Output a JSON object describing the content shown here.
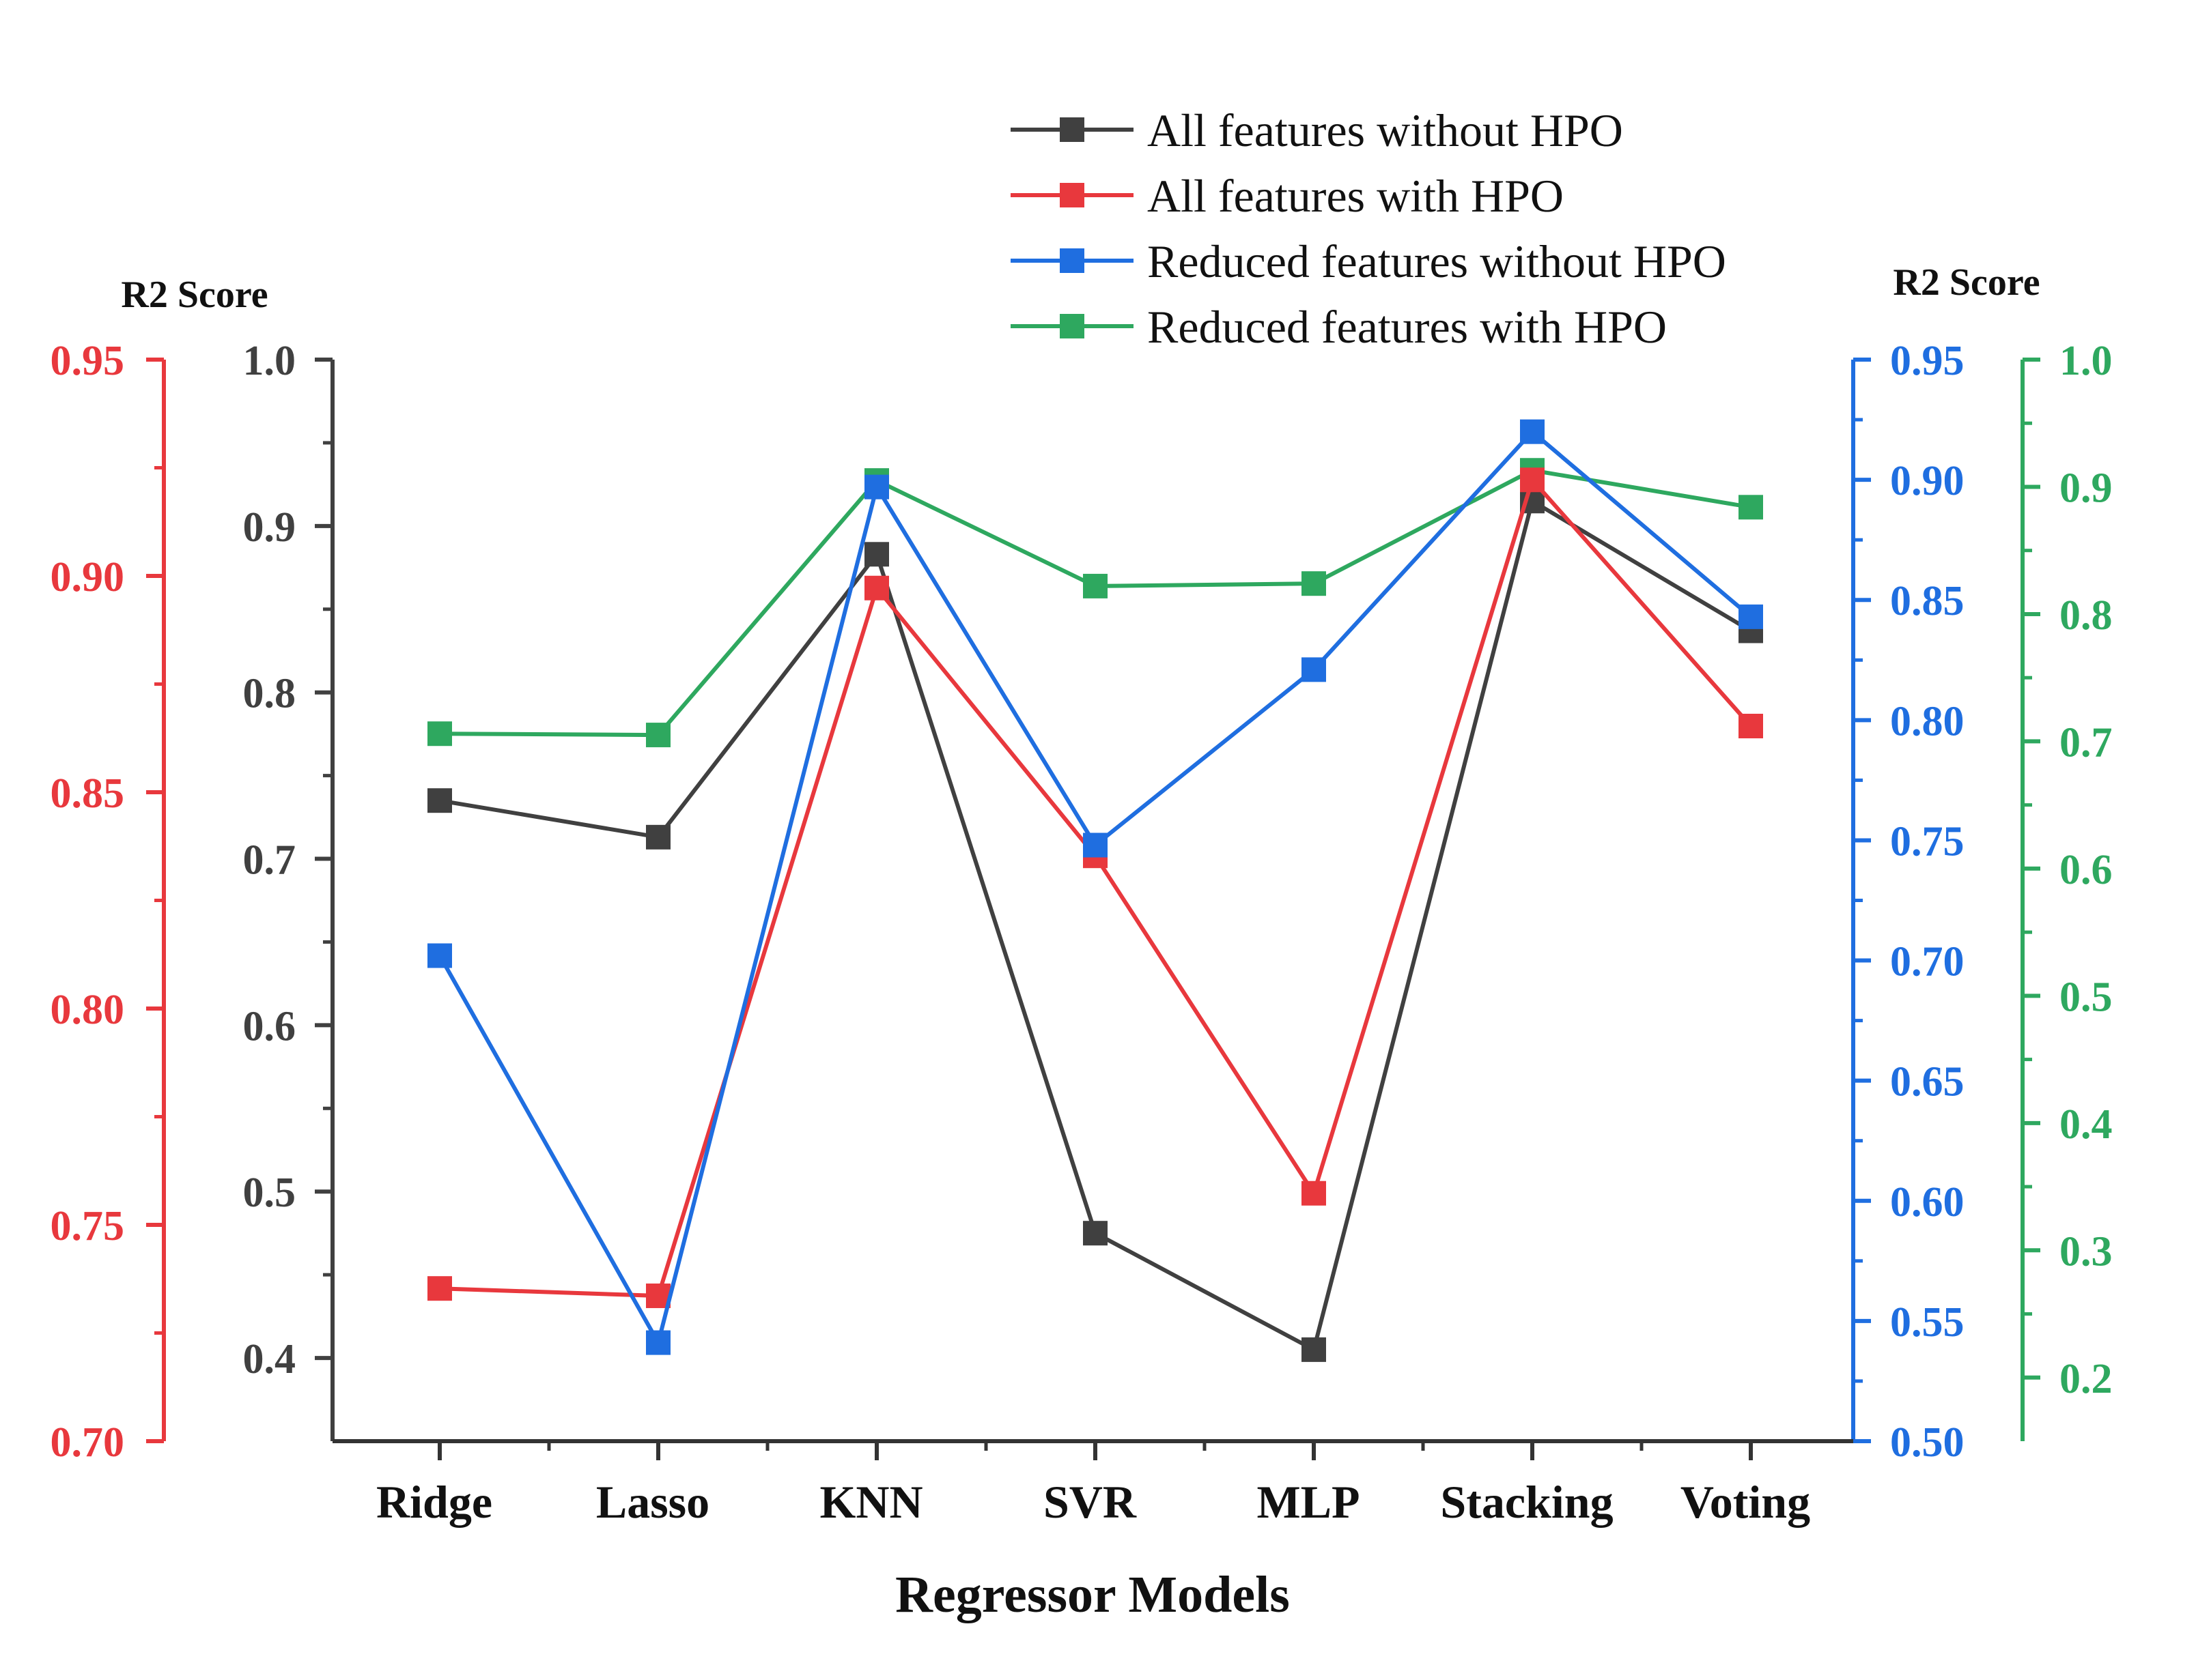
{
  "chart_data": {
    "type": "line",
    "xlabel": "Regressor Models",
    "categories": [
      "Ridge",
      "Lasso",
      "KNN",
      "SVR",
      "MLP",
      "Stacking",
      "Voting"
    ],
    "left_axis_title": "R2 Score",
    "right_axis_title": "R2 Score",
    "axes": {
      "red": {
        "color": "#e8383d",
        "ylim": [
          0.7,
          0.95
        ],
        "ticks": [
          "0.70",
          "0.75",
          "0.80",
          "0.85",
          "0.90",
          "0.95"
        ]
      },
      "black": {
        "color": "#404040",
        "ylim": [
          0.35,
          1.0
        ],
        "ticks": [
          "0.4",
          "0.5",
          "0.6",
          "0.7",
          "0.8",
          "0.9",
          "1.0"
        ]
      },
      "blue": {
        "color": "#1f6ee0",
        "ylim": [
          0.5,
          0.95
        ],
        "ticks": [
          "0.50",
          "0.55",
          "0.60",
          "0.65",
          "0.70",
          "0.75",
          "0.80",
          "0.85",
          "0.90",
          "0.95"
        ]
      },
      "green": {
        "color": "#2ea85f",
        "ylim": [
          0.15,
          1.0
        ],
        "ticks": [
          "0.2",
          "0.3",
          "0.4",
          "0.5",
          "0.6",
          "0.7",
          "0.8",
          "0.9",
          "1.0"
        ]
      }
    },
    "series": [
      {
        "name": "All features without HPO",
        "color": "#404040",
        "axis": "black",
        "values": [
          0.735,
          0.713,
          0.883,
          0.475,
          0.405,
          0.915,
          0.837
        ]
      },
      {
        "name": "All features with HPO",
        "color": "#e8383d",
        "axis": "red",
        "values": [
          0.7353,
          0.7336,
          0.8972,
          0.8353,
          0.7573,
          0.9222,
          0.8653
        ]
      },
      {
        "name": "Reduced features without HPO",
        "color": "#1f6ee0",
        "axis": "blue",
        "values": [
          0.702,
          0.541,
          0.897,
          0.748,
          0.821,
          0.92,
          0.843
        ]
      },
      {
        "name": "Reduced features with HPO",
        "color": "#2ea85f",
        "axis": "green",
        "values": [
          0.706,
          0.705,
          0.905,
          0.822,
          0.824,
          0.913,
          0.884
        ]
      }
    ]
  }
}
